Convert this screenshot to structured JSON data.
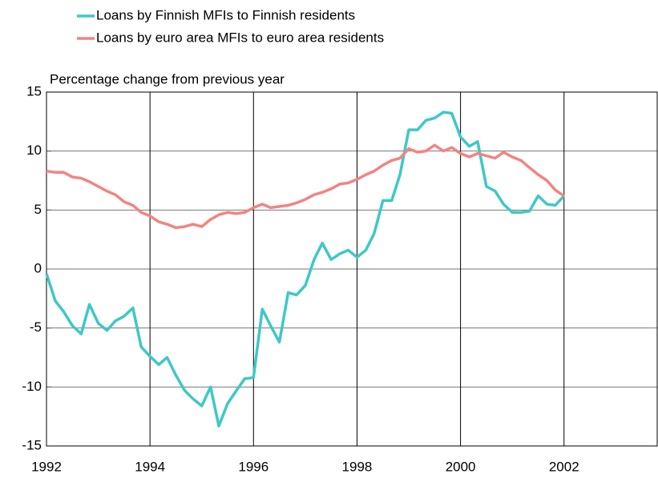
{
  "chart_data": {
    "type": "line",
    "title": "Percentage change from previous year",
    "x": [
      1992,
      1992.17,
      1992.33,
      1992.5,
      1992.67,
      1992.83,
      1993,
      1993.17,
      1993.33,
      1993.5,
      1993.67,
      1993.83,
      1994,
      1994.17,
      1994.33,
      1994.5,
      1994.67,
      1994.83,
      1995,
      1995.17,
      1995.33,
      1995.5,
      1995.67,
      1995.83,
      1996,
      1996.17,
      1996.33,
      1996.5,
      1996.67,
      1996.83,
      1997,
      1997.17,
      1997.33,
      1997.5,
      1997.67,
      1997.83,
      1998,
      1998.17,
      1998.33,
      1998.5,
      1998.67,
      1998.83,
      1999,
      1999.17,
      1999.33,
      1999.5,
      1999.67,
      1999.83,
      2000,
      2000.17,
      2000.33,
      2000.5,
      2000.67,
      2000.83,
      2001,
      2001.17,
      2001.33,
      2001.5,
      2001.67,
      2001.83,
      2002
    ],
    "series": [
      {
        "name": "Loans by Finnish MFIs to Finnish residents",
        "color": "#3ec8c6",
        "values": [
          -0.4,
          -2.7,
          -3.6,
          -4.8,
          -5.5,
          -3.0,
          -4.6,
          -5.2,
          -4.4,
          -4.0,
          -3.3,
          -6.6,
          -7.4,
          -8.1,
          -7.5,
          -9.0,
          -10.3,
          -11.0,
          -11.6,
          -10.0,
          -13.3,
          -11.4,
          -10.3,
          -9.3,
          -9.2,
          -3.4,
          -4.8,
          -6.2,
          -2.0,
          -2.2,
          -1.4,
          0.8,
          2.2,
          0.8,
          1.3,
          1.6,
          1.0,
          1.6,
          3.0,
          5.8,
          5.8,
          8.0,
          11.8,
          11.8,
          12.6,
          12.8,
          13.3,
          13.2,
          11.2,
          10.4,
          10.8,
          7.0,
          6.6,
          5.5,
          4.8,
          4.8,
          4.9,
          6.2,
          5.5,
          5.4,
          6.2
        ]
      },
      {
        "name": "Loans by euro area MFIs to euro area residents",
        "color": "#f28482",
        "values": [
          8.3,
          8.2,
          8.2,
          7.8,
          7.7,
          7.4,
          7.0,
          6.6,
          6.3,
          5.7,
          5.4,
          4.8,
          4.5,
          4.0,
          3.8,
          3.5,
          3.6,
          3.8,
          3.6,
          4.2,
          4.6,
          4.8,
          4.7,
          4.8,
          5.2,
          5.5,
          5.2,
          5.3,
          5.4,
          5.6,
          5.9,
          6.3,
          6.5,
          6.8,
          7.2,
          7.3,
          7.6,
          8.0,
          8.3,
          8.8,
          9.2,
          9.4,
          10.2,
          9.9,
          10.0,
          10.5,
          10.0,
          10.3,
          9.8,
          9.5,
          9.8,
          9.6,
          9.4,
          9.9,
          9.5,
          9.2,
          8.6,
          8.0,
          7.5,
          6.7,
          6.2
        ]
      }
    ],
    "xlim": [
      1992,
      2003.8
    ],
    "xticks": [
      1992,
      1994,
      1996,
      1998,
      2000,
      2002
    ],
    "ylim": [
      -15,
      15
    ],
    "yticks": [
      -15,
      -10,
      -5,
      0,
      5,
      10,
      15
    ],
    "grid": true
  }
}
